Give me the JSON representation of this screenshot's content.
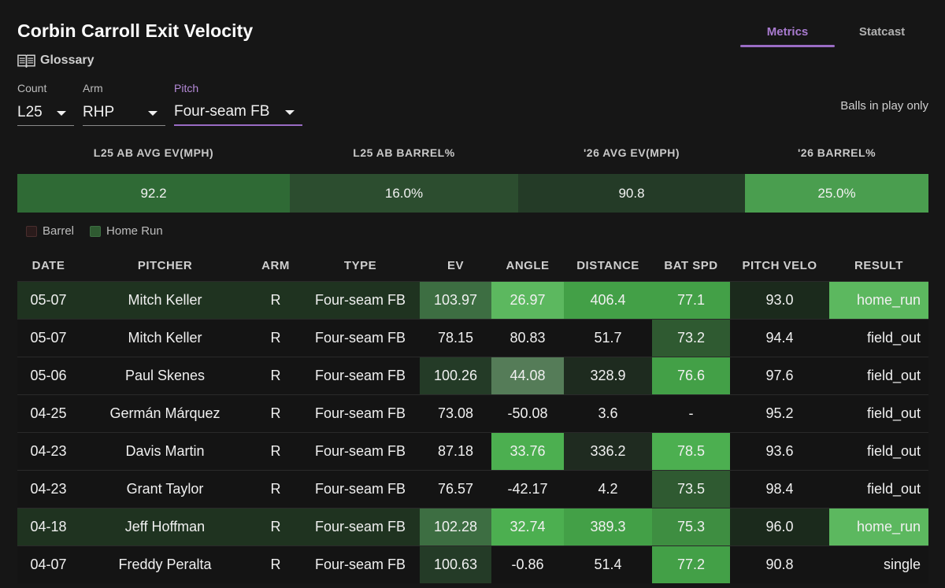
{
  "title": "Corbin Carroll Exit Velocity",
  "glossary_label": "Glossary",
  "tabs": [
    {
      "label": "Metrics",
      "active": true
    },
    {
      "label": "Statcast",
      "active": false
    }
  ],
  "filters": {
    "count": {
      "label": "Count",
      "value": "L25"
    },
    "arm": {
      "label": "Arm",
      "value": "RHP"
    },
    "pitch": {
      "label": "Pitch",
      "value": "Four-seam FB"
    }
  },
  "balls_in_play_label": "Balls in play only",
  "summary": [
    {
      "label": "L25 AB AVG EV(MPH)",
      "value": "92.2",
      "color": "#2f6a35"
    },
    {
      "label": "L25 AB BARREL%",
      "value": "16.0%",
      "color": "#2c4d2f"
    },
    {
      "label": "'26 AVG EV(MPH)",
      "value": "90.8",
      "color": "#243b27"
    },
    {
      "label": "'26 BARREL%",
      "value": "25.0%",
      "color": "#4a9e4f"
    }
  ],
  "legend": [
    {
      "label": "Barrel",
      "color": "#3a2222"
    },
    {
      "label": "Home Run",
      "color": "#2f5a31"
    }
  ],
  "columns": [
    "DATE",
    "PITCHER",
    "ARM",
    "TYPE",
    "EV",
    "ANGLE",
    "DISTANCE",
    "BAT SPD",
    "PITCH VELO",
    "RESULT"
  ],
  "rows": [
    {
      "date": "05-07",
      "pitcher": "Mitch Keller",
      "arm": "R",
      "type": "Four-seam FB",
      "ev": "103.97",
      "angle": "26.97",
      "distance": "406.4",
      "bat_spd": "77.1",
      "pitch_velo": "93.0",
      "result": "home_run",
      "home_run": true,
      "colors": {
        "ev": "#3d6e42",
        "angle": "#5cb85f",
        "distance": "#43a047",
        "bat_spd": "#43a047",
        "pitch_velo": "#1b2a1c",
        "result": "#5cb85f"
      }
    },
    {
      "date": "05-07",
      "pitcher": "Mitch Keller",
      "arm": "R",
      "type": "Four-seam FB",
      "ev": "78.15",
      "angle": "80.83",
      "distance": "51.7",
      "bat_spd": "73.2",
      "pitch_velo": "94.4",
      "result": "field_out",
      "home_run": false,
      "colors": {
        "bat_spd": "#2f5a31"
      }
    },
    {
      "date": "05-06",
      "pitcher": "Paul Skenes",
      "arm": "R",
      "type": "Four-seam FB",
      "ev": "100.26",
      "angle": "44.08",
      "distance": "328.9",
      "bat_spd": "76.6",
      "pitch_velo": "97.6",
      "result": "field_out",
      "home_run": false,
      "colors": {
        "ev": "#243b27",
        "angle": "#557c58",
        "distance": "#1e2b1f",
        "bat_spd": "#43a047"
      }
    },
    {
      "date": "04-25",
      "pitcher": "Germán Márquez",
      "arm": "R",
      "type": "Four-seam FB",
      "ev": "73.08",
      "angle": "-50.08",
      "distance": "3.6",
      "bat_spd": "-",
      "pitch_velo": "95.2",
      "result": "field_out",
      "home_run": false,
      "colors": {}
    },
    {
      "date": "04-23",
      "pitcher": "Davis Martin",
      "arm": "R",
      "type": "Four-seam FB",
      "ev": "87.18",
      "angle": "33.76",
      "distance": "336.2",
      "bat_spd": "78.5",
      "pitch_velo": "93.6",
      "result": "field_out",
      "home_run": false,
      "colors": {
        "angle": "#4caf50",
        "distance": "#1f2b20",
        "bat_spd": "#4caf50"
      }
    },
    {
      "date": "04-23",
      "pitcher": "Grant Taylor",
      "arm": "R",
      "type": "Four-seam FB",
      "ev": "76.57",
      "angle": "-42.17",
      "distance": "4.2",
      "bat_spd": "73.5",
      "pitch_velo": "98.4",
      "result": "field_out",
      "home_run": false,
      "colors": {
        "bat_spd": "#2f5a31"
      }
    },
    {
      "date": "04-18",
      "pitcher": "Jeff Hoffman",
      "arm": "R",
      "type": "Four-seam FB",
      "ev": "102.28",
      "angle": "32.74",
      "distance": "389.3",
      "bat_spd": "75.3",
      "pitch_velo": "96.0",
      "result": "home_run",
      "home_run": true,
      "colors": {
        "ev": "#3d6e42",
        "angle": "#4caf50",
        "distance": "#43a047",
        "bat_spd": "#3e8e41",
        "pitch_velo": "#1b2a1c",
        "result": "#5cb85f"
      }
    },
    {
      "date": "04-07",
      "pitcher": "Freddy Peralta",
      "arm": "R",
      "type": "Four-seam FB",
      "ev": "100.63",
      "angle": "-0.86",
      "distance": "51.4",
      "bat_spd": "77.2",
      "pitch_velo": "90.8",
      "result": "single",
      "home_run": false,
      "colors": {
        "ev": "#243b27",
        "bat_spd": "#43a047"
      }
    }
  ]
}
